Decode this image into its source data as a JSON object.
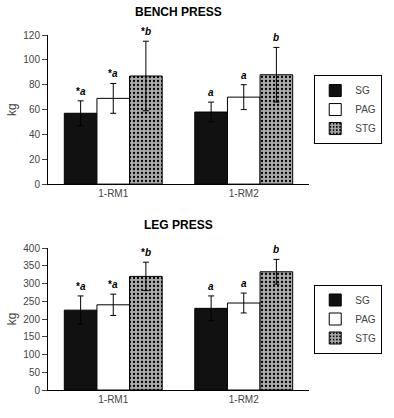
{
  "chart_data": [
    {
      "type": "bar",
      "title": "BENCH PRESS",
      "y_label": "kg",
      "categories": [
        "1-RM1",
        "1-RM2"
      ],
      "series": [
        {
          "name": "SG",
          "color": "#111111",
          "values": [
            57,
            58
          ],
          "errors": [
            10,
            8
          ],
          "annotations": [
            "*a",
            "a"
          ]
        },
        {
          "name": "PAG",
          "color": "white",
          "values": [
            69,
            70
          ],
          "errors": [
            12,
            10
          ],
          "annotations": [
            "*a",
            "a"
          ]
        },
        {
          "name": "STG",
          "color": "#aaaaaa",
          "values": [
            87,
            88
          ],
          "errors": [
            28,
            22
          ],
          "annotations": [
            "*b",
            "b"
          ]
        }
      ],
      "ylim": [
        0,
        120
      ],
      "yticks": [
        0,
        20,
        40,
        60,
        80,
        100,
        120
      ],
      "grid": false,
      "legend": "right"
    },
    {
      "type": "bar",
      "title": "LEG PRESS",
      "y_label": "kg",
      "categories": [
        "1-RM1",
        "1-RM2"
      ],
      "series": [
        {
          "name": "SG",
          "color": "#111111",
          "values": [
            225,
            230
          ],
          "errors": [
            40,
            35
          ],
          "annotations": [
            "*a",
            "a"
          ]
        },
        {
          "name": "PAG",
          "color": "white",
          "values": [
            240,
            245
          ],
          "errors": [
            30,
            28
          ],
          "annotations": [
            "*a",
            "a"
          ]
        },
        {
          "name": "STG",
          "color": "#aaaaaa",
          "values": [
            320,
            333
          ],
          "errors": [
            40,
            35
          ],
          "annotations": [
            "*b",
            "b"
          ]
        }
      ],
      "ylim": [
        0,
        400
      ],
      "yticks": [
        0,
        50,
        100,
        150,
        200,
        250,
        300,
        350,
        400
      ],
      "grid": false,
      "legend": "right"
    }
  ]
}
